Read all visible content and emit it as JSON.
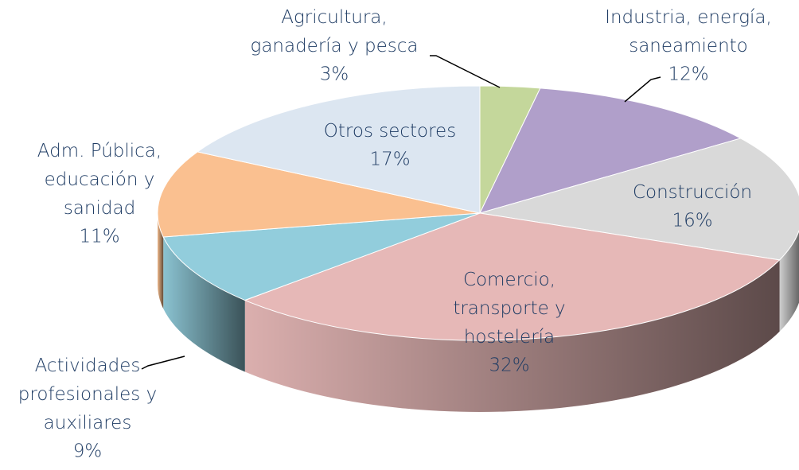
{
  "chart_data": {
    "type": "pie",
    "categories": [
      "Agricultura,\nganadería y pesca",
      "Industria, energía,\nsaneamiento",
      "Construcción",
      "Comercio,\ntransporte y\nhostelería",
      "Actividades\nprofesionales y\nauxiliares",
      "Adm. Pública,\neducación y\nsanidad",
      "Otros sectores"
    ],
    "values": [
      3,
      12,
      16,
      32,
      9,
      11,
      17
    ],
    "value_labels": [
      "3%",
      "12%",
      "16%",
      "32%",
      "9%",
      "11%",
      "17%"
    ],
    "colors": [
      "#c4d79b",
      "#b09fca",
      "#d9d9d9",
      "#e6b8b7",
      "#92cddc",
      "#fac090",
      "#dce6f1"
    ]
  }
}
